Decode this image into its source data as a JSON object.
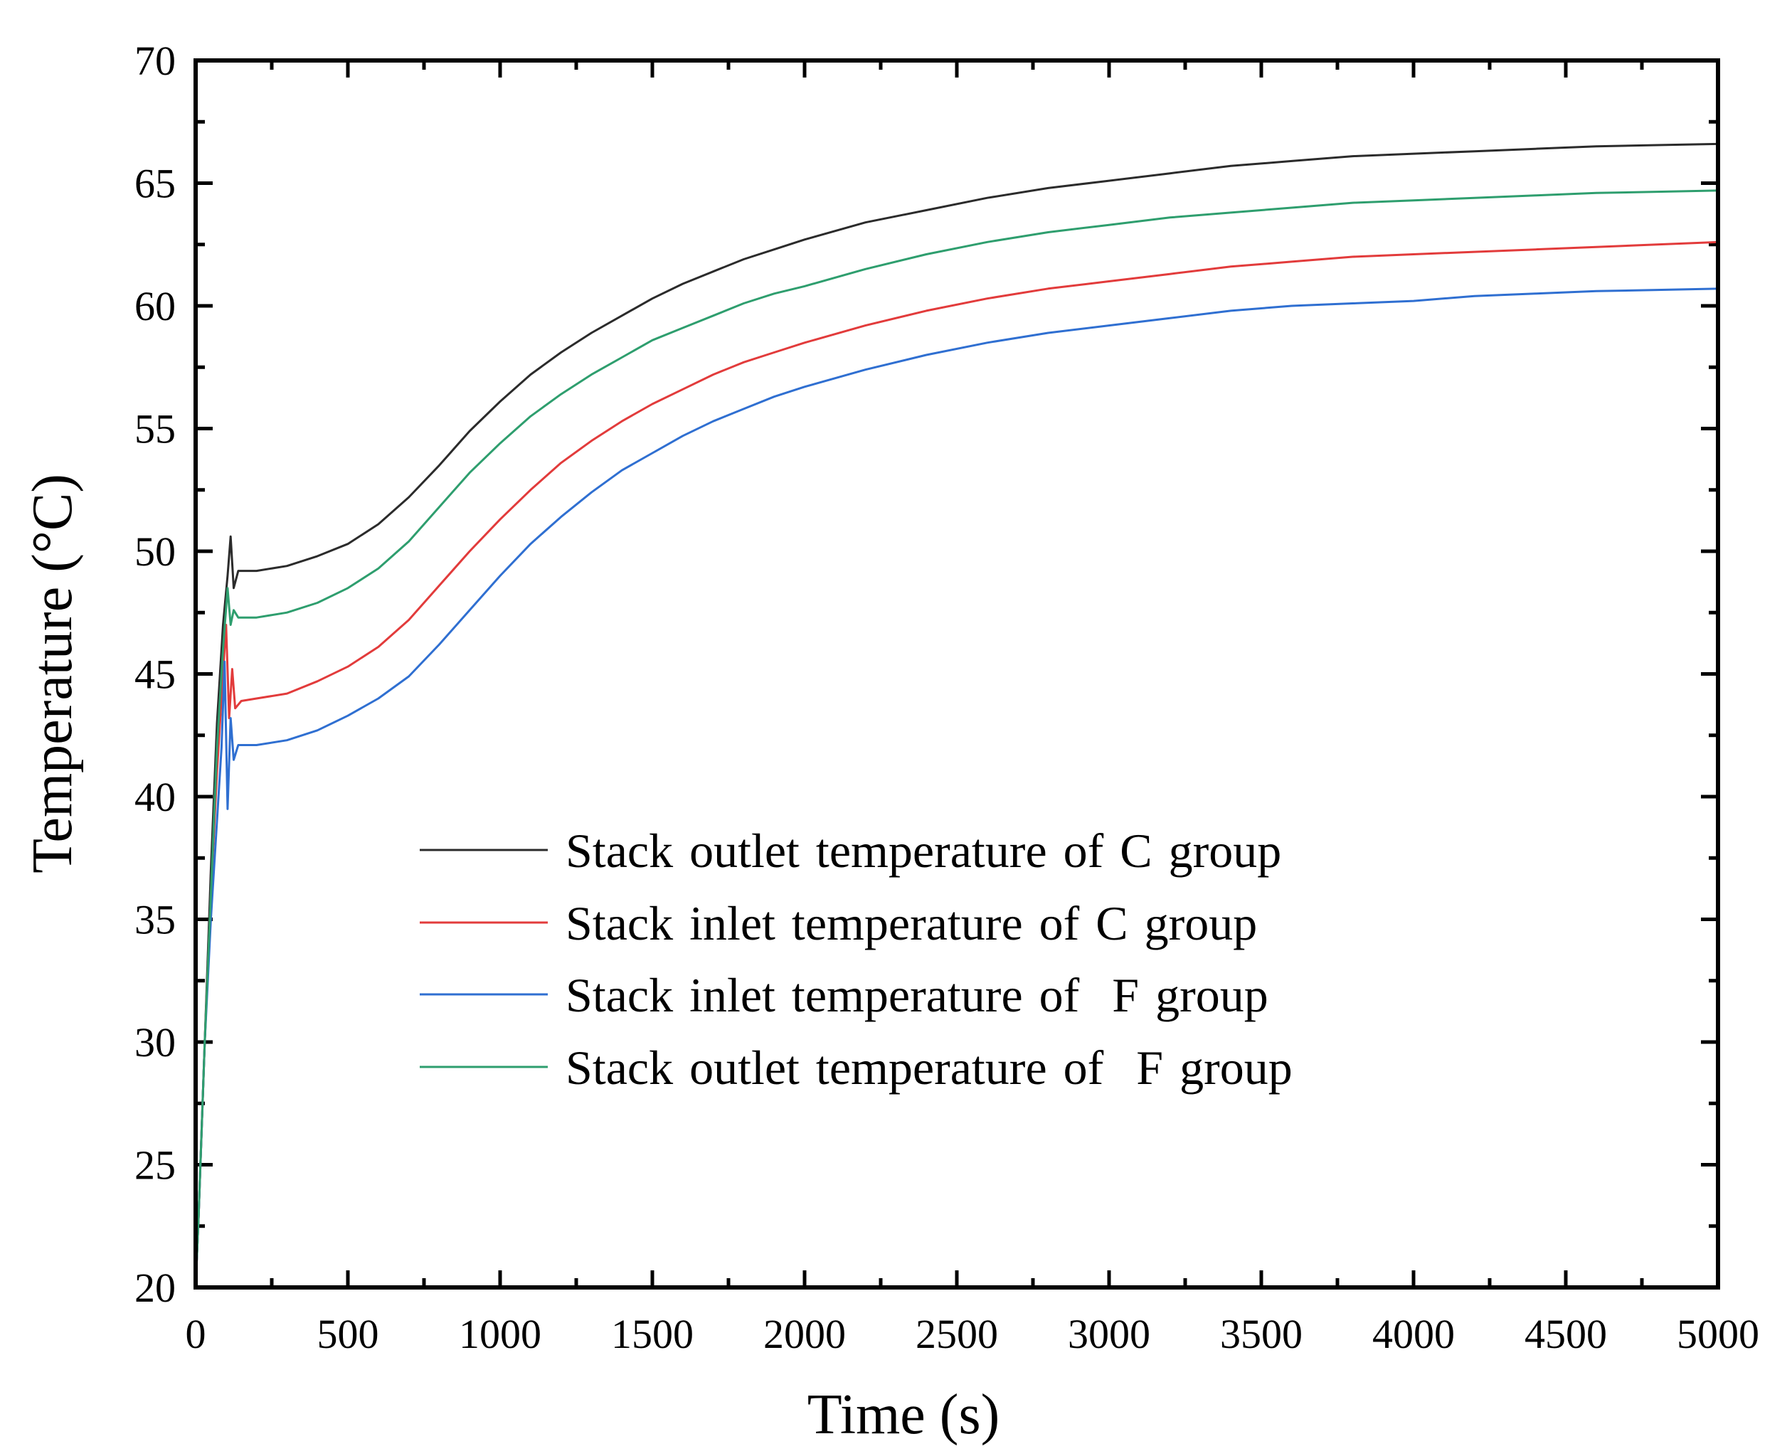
{
  "chart_data": {
    "type": "line",
    "title": "",
    "xlabel": "Time (s)",
    "ylabel": "Temperature (°C)",
    "xlim": [
      0,
      5000
    ],
    "ylim": [
      20,
      70
    ],
    "xticks": [
      0,
      500,
      1000,
      1500,
      2000,
      2500,
      3000,
      3500,
      4000,
      4500,
      5000
    ],
    "yticks": [
      20,
      25,
      30,
      35,
      40,
      45,
      50,
      55,
      60,
      65,
      70
    ],
    "xtick_labels": [
      "0",
      "500",
      "1000",
      "1500",
      "2000",
      "2500",
      "3000",
      "3500",
      "4000",
      "4500",
      "5000"
    ],
    "ytick_labels": [
      "20",
      "25",
      "30",
      "35",
      "40",
      "45",
      "50",
      "55",
      "60",
      "65",
      "70"
    ],
    "grid": false,
    "legend_position": "center-left",
    "series": [
      {
        "name": "Stack outlet temperature of C group",
        "color": "#2b2b2b",
        "x": [
          0,
          10,
          30,
          50,
          70,
          90,
          105,
          115,
          125,
          140,
          200,
          300,
          400,
          500,
          600,
          700,
          800,
          900,
          1000,
          1100,
          1200,
          1300,
          1400,
          1500,
          1600,
          1700,
          1800,
          1900,
          2000,
          2200,
          2400,
          2600,
          2800,
          3000,
          3200,
          3400,
          3600,
          3800,
          4000,
          4200,
          4400,
          4600,
          4800,
          5000
        ],
        "y": [
          20,
          23,
          30,
          37,
          43,
          47,
          49,
          50.6,
          48.5,
          49.2,
          49.2,
          49.4,
          49.8,
          50.3,
          51.1,
          52.2,
          53.5,
          54.9,
          56.1,
          57.2,
          58.1,
          58.9,
          59.6,
          60.3,
          60.9,
          61.4,
          61.9,
          62.3,
          62.7,
          63.4,
          63.9,
          64.4,
          64.8,
          65.1,
          65.4,
          65.7,
          65.9,
          66.1,
          66.2,
          66.3,
          66.4,
          66.5,
          66.55,
          66.6
        ]
      },
      {
        "name": "Stack inlet temperature of C group",
        "color": "#e23b3b",
        "x": [
          0,
          10,
          30,
          50,
          70,
          90,
          100,
          110,
          120,
          130,
          150,
          200,
          300,
          400,
          500,
          600,
          700,
          800,
          900,
          1000,
          1100,
          1200,
          1300,
          1400,
          1500,
          1600,
          1700,
          1800,
          1900,
          2000,
          2200,
          2400,
          2600,
          2800,
          3000,
          3200,
          3400,
          3600,
          3800,
          4000,
          4200,
          4400,
          4600,
          4800,
          5000
        ],
        "y": [
          20,
          23,
          30,
          36,
          41,
          45,
          47,
          43.2,
          45.2,
          43.6,
          43.9,
          44,
          44.2,
          44.7,
          45.3,
          46.1,
          47.2,
          48.6,
          50,
          51.3,
          52.5,
          53.6,
          54.5,
          55.3,
          56,
          56.6,
          57.2,
          57.7,
          58.1,
          58.5,
          59.2,
          59.8,
          60.3,
          60.7,
          61,
          61.3,
          61.6,
          61.8,
          62,
          62.1,
          62.2,
          62.3,
          62.4,
          62.5,
          62.6
        ]
      },
      {
        "name": "Stack inlet temperature of  F group",
        "color": "#2f6fd1",
        "x": [
          0,
          10,
          30,
          50,
          70,
          85,
          95,
          105,
          115,
          125,
          140,
          200,
          300,
          400,
          500,
          600,
          700,
          800,
          900,
          1000,
          1100,
          1200,
          1300,
          1400,
          1500,
          1600,
          1700,
          1800,
          1900,
          2000,
          2200,
          2400,
          2600,
          2800,
          3000,
          3200,
          3400,
          3600,
          3800,
          4000,
          4200,
          4400,
          4600,
          4800,
          5000
        ],
        "y": [
          20,
          23,
          30,
          35,
          39,
          42,
          45.5,
          39.5,
          43.2,
          41.5,
          42.1,
          42.1,
          42.3,
          42.7,
          43.3,
          44,
          44.9,
          46.2,
          47.6,
          49,
          50.3,
          51.4,
          52.4,
          53.3,
          54,
          54.7,
          55.3,
          55.8,
          56.3,
          56.7,
          57.4,
          58,
          58.5,
          58.9,
          59.2,
          59.5,
          59.8,
          60,
          60.1,
          60.2,
          60.4,
          60.5,
          60.6,
          60.65,
          60.7
        ]
      },
      {
        "name": "Stack outlet temperature of  F group",
        "color": "#2e9e6e",
        "x": [
          0,
          10,
          30,
          50,
          70,
          90,
          105,
          115,
          125,
          140,
          200,
          300,
          400,
          500,
          600,
          700,
          800,
          900,
          1000,
          1100,
          1200,
          1300,
          1400,
          1500,
          1600,
          1700,
          1800,
          1900,
          2000,
          2200,
          2400,
          2600,
          2800,
          3000,
          3200,
          3400,
          3600,
          3800,
          4000,
          4200,
          4400,
          4600,
          4800,
          5000
        ],
        "y": [
          20,
          23,
          30,
          36,
          42,
          46,
          48.5,
          47,
          47.6,
          47.3,
          47.3,
          47.5,
          47.9,
          48.5,
          49.3,
          50.4,
          51.8,
          53.2,
          54.4,
          55.5,
          56.4,
          57.2,
          57.9,
          58.6,
          59.1,
          59.6,
          60.1,
          60.5,
          60.8,
          61.5,
          62.1,
          62.6,
          63,
          63.3,
          63.6,
          63.8,
          64,
          64.2,
          64.3,
          64.4,
          64.5,
          64.6,
          64.65,
          64.7
        ]
      }
    ]
  }
}
